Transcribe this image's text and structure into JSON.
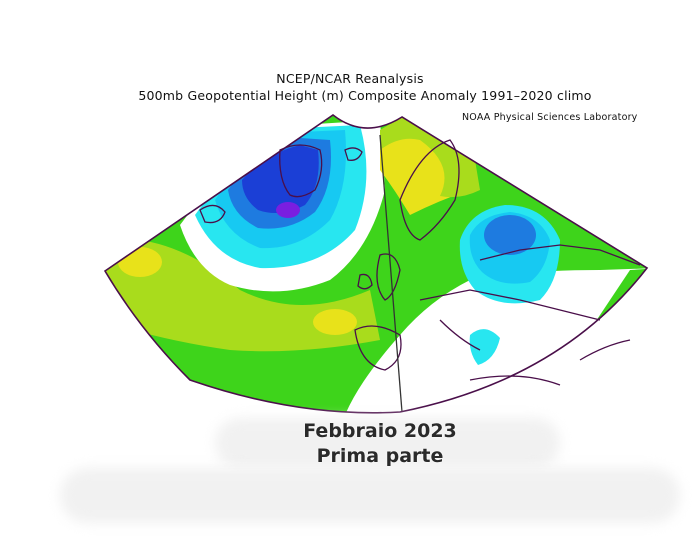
{
  "header": {
    "title_line1": "NCEP/NCAR Reanalysis",
    "title_line2": "500mb Geopotential Height (m) Composite Anomaly 1991–2020 climo",
    "credit": "NOAA Physical Sciences Laboratory"
  },
  "caption": {
    "line1": "Febbraio 2023",
    "line2": "Prima parte"
  },
  "colors": {
    "deep_purple": "#7a1ee0",
    "dark_blue": "#1b3fd6",
    "blue": "#1e7be0",
    "light_blue": "#17c9f2",
    "cyan": "#28e6f0",
    "white": "#ffffff",
    "green": "#3ed41b",
    "yellow_green": "#a9dc1c",
    "yellow": "#e8e21a",
    "coast": "#4a0f4a"
  }
}
